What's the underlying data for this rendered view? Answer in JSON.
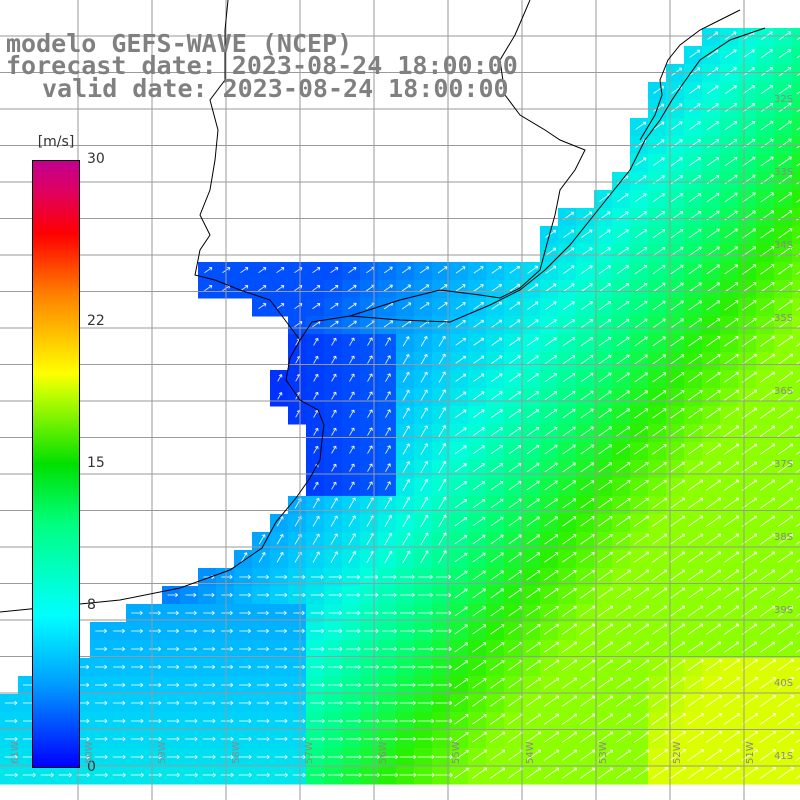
{
  "title": {
    "line1": "modelo GEFS-WAVE (NCEP)",
    "line2": "forecast date: 2023-08-24 18:00:00",
    "line3": "valid date: 2023-08-24 18:00:00"
  },
  "colorbar": {
    "unit": "[m/s]",
    "ticks": [
      {
        "label": "30",
        "value": 30
      },
      {
        "label": "22",
        "value": 22
      },
      {
        "label": "15",
        "value": 15
      },
      {
        "label": "8",
        "value": 8
      },
      {
        "label": "0",
        "value": 0
      }
    ]
  },
  "lat_labels": [
    "32S",
    "33S",
    "34S",
    "35S",
    "36S",
    "37S",
    "38S",
    "39S",
    "40S",
    "41S"
  ],
  "lon_labels": [
    "61W",
    "60W",
    "59W",
    "58W",
    "57W",
    "56W",
    "55W",
    "54W",
    "53W",
    "52W",
    "51W"
  ],
  "colors": {
    "land": "#ffffff",
    "grid": "#9a9a9a",
    "coast": "#000000",
    "arrow": "#ffffff",
    "title": "#808080"
  }
}
